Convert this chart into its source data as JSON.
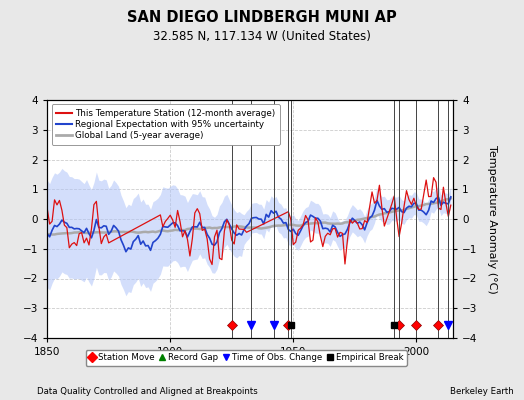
{
  "title": "SAN DIEGO LINDBERGH MUNI AP",
  "subtitle": "32.585 N, 117.134 W (United States)",
  "xlabel_left": "Data Quality Controlled and Aligned at Breakpoints",
  "xlabel_right": "Berkeley Earth",
  "ylabel": "Temperature Anomaly (°C)",
  "ylim": [
    -4,
    4
  ],
  "xlim": [
    1850,
    2015
  ],
  "yticks": [
    -4,
    -3,
    -2,
    -1,
    0,
    1,
    2,
    3,
    4
  ],
  "xticks": [
    1850,
    1900,
    1950,
    2000
  ],
  "bg_color": "#e8e8e8",
  "plot_bg_color": "#ffffff",
  "station_moves": [
    1925,
    1948,
    1993,
    2000,
    2009
  ],
  "record_gaps": [],
  "time_of_obs_changes": [
    1933,
    1942,
    2013
  ],
  "empirical_breaks": [
    1949,
    1991
  ],
  "seed": 12345
}
